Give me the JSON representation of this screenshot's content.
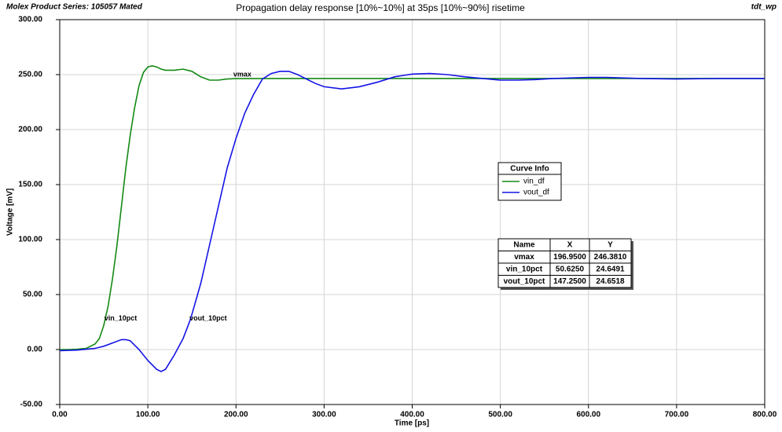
{
  "chart_data": {
    "type": "line",
    "header_left": "Molex Product Series: 105057 Mated",
    "header_right": "tdt_wp",
    "title": "Propagation delay response [10%~10%] at 35ps [10%~90%] risetime",
    "x_label": "Time [ps]",
    "y_label": "Voltage [mV]",
    "xlim": [
      0,
      800
    ],
    "ylim": [
      -50,
      300
    ],
    "xticks": [
      {
        "value": 0,
        "label": "0.00"
      },
      {
        "value": 100,
        "label": "100.00"
      },
      {
        "value": 200,
        "label": "200.00"
      },
      {
        "value": 300,
        "label": "300.00"
      },
      {
        "value": 400,
        "label": "400.00"
      },
      {
        "value": 500,
        "label": "500.00"
      },
      {
        "value": 600,
        "label": "600.00"
      },
      {
        "value": 700,
        "label": "700.00"
      },
      {
        "value": 800,
        "label": "800.00"
      }
    ],
    "yticks": [
      {
        "value": -50,
        "label": "-50.00"
      },
      {
        "value": 0,
        "label": "0.00"
      },
      {
        "value": 50,
        "label": "50.00"
      },
      {
        "value": 100,
        "label": "100.00"
      },
      {
        "value": 150,
        "label": "150.00"
      },
      {
        "value": 200,
        "label": "200.00"
      },
      {
        "value": 250,
        "label": "250.00"
      },
      {
        "value": 300,
        "label": "300.00"
      }
    ],
    "grid": true,
    "legend_title": "Curve Info",
    "series": [
      {
        "name": "vin_df",
        "color": "#138a13",
        "x": [
          0,
          10,
          20,
          30,
          40,
          45,
          50,
          55,
          60,
          65,
          70,
          75,
          80,
          85,
          90,
          95,
          100,
          105,
          110,
          115,
          120,
          130,
          140,
          150,
          160,
          170,
          180,
          190,
          200,
          250,
          300,
          400,
          500,
          600,
          700,
          800
        ],
        "values": [
          0,
          0,
          0.3,
          1,
          5,
          10,
          22,
          40,
          65,
          95,
          130,
          165,
          195,
          220,
          240,
          252,
          257,
          258,
          257,
          255,
          254,
          254,
          255,
          253,
          248,
          245,
          245,
          246,
          246.4,
          246.5,
          246.5,
          246.5,
          246.5,
          246.5,
          246.5,
          246.5
        ]
      },
      {
        "name": "vout_df",
        "color": "#1414e6",
        "x": [
          0,
          20,
          40,
          50,
          60,
          70,
          75,
          80,
          90,
          100,
          110,
          115,
          120,
          130,
          140,
          147,
          150,
          160,
          170,
          180,
          190,
          200,
          210,
          220,
          230,
          240,
          250,
          260,
          270,
          280,
          290,
          300,
          320,
          340,
          360,
          380,
          400,
          420,
          440,
          460,
          480,
          500,
          520,
          540,
          560,
          600,
          620,
          660,
          700,
          750,
          800
        ],
        "values": [
          -1,
          -0.5,
          1,
          3,
          6,
          9,
          9,
          8,
          0,
          -10,
          -18,
          -20,
          -18,
          -5,
          10,
          24.6,
          32,
          60,
          95,
          130,
          165,
          192,
          215,
          232,
          246,
          251,
          253,
          253,
          250,
          246,
          242,
          239,
          237,
          239,
          243,
          248,
          250.5,
          251,
          250,
          248,
          246.5,
          245,
          245,
          245.5,
          246.5,
          247.5,
          247.5,
          246.5,
          246,
          246.5,
          246.5
        ]
      }
    ],
    "marker_table": {
      "header": [
        "Name",
        "X",
        "Y"
      ],
      "rows": [
        {
          "name": "vmax",
          "x": {
            "value": 196.95,
            "label": "196.9500"
          },
          "y": {
            "value": 246.381,
            "label": "246.3810"
          }
        },
        {
          "name": "vin_10pct",
          "x": {
            "value": 50.625,
            "label": "50.6250"
          },
          "y": {
            "value": 24.6491,
            "label": "24.6491"
          }
        },
        {
          "name": "vout_10pct",
          "x": {
            "value": 147.25,
            "label": "147.2500"
          },
          "y": {
            "value": 24.6518,
            "label": "24.6518"
          }
        }
      ]
    }
  }
}
